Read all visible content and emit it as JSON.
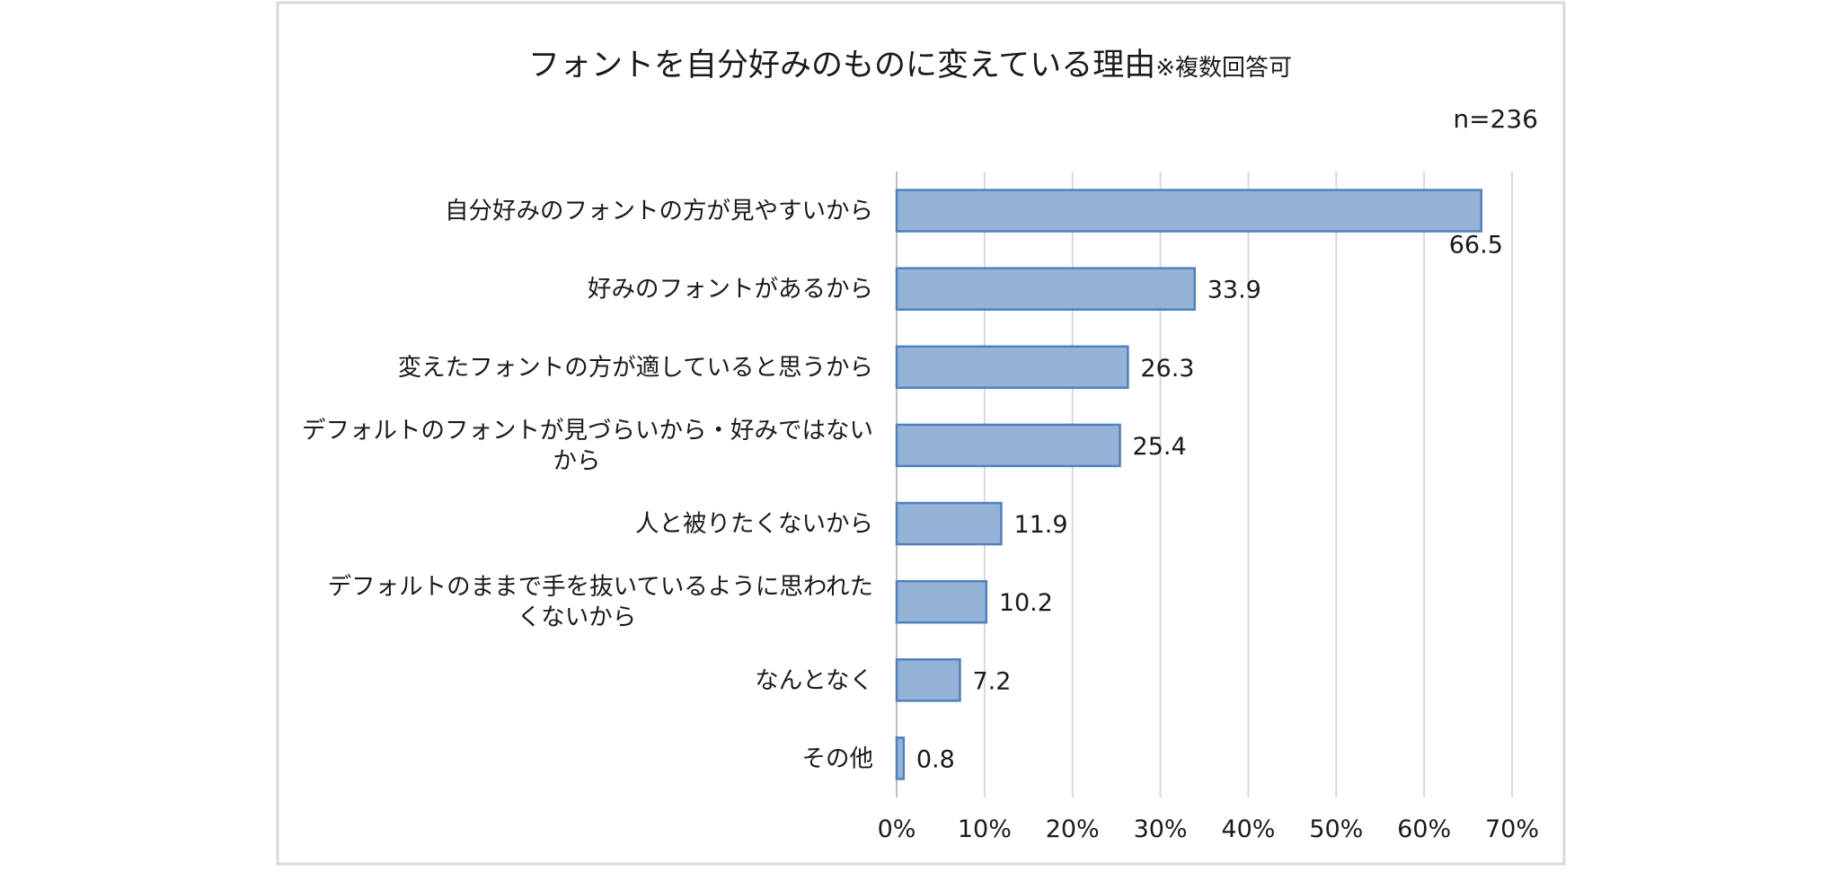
{
  "chart_data": {
    "type": "bar",
    "orientation": "horizontal",
    "title": "フォントを自分好みのものに変えている理由",
    "title_note": "※複数回答可",
    "sample_size": "n=236",
    "categories": [
      "自分好みのフォントの方が見やすいから",
      "好みのフォントがあるから",
      "変えたフォントの方が適していると思うから",
      [
        "デフォルトのフォントが見づらいから・好みではない",
        "から"
      ],
      "人と被りたくないから",
      [
        "デフォルトのままで手を抜いているように思われた",
        "くないから"
      ],
      "なんとなく",
      "その他"
    ],
    "values": [
      66.5,
      33.9,
      26.3,
      25.4,
      11.9,
      10.2,
      7.2,
      0.8
    ],
    "value_labels": [
      "66.5",
      "33.9",
      "26.3",
      "25.4",
      "11.9",
      "10.2",
      "7.2",
      "0.8"
    ],
    "xlim": [
      0,
      70
    ],
    "x_ticks": [
      "0%",
      "10%",
      "20%",
      "30%",
      "40%",
      "50%",
      "60%",
      "70%"
    ],
    "xlabel": "",
    "ylabel": "",
    "grid": "vertical",
    "legend": "none",
    "colors": {
      "bar_fill": "#95b3d7",
      "bar_border": "#4f81bd",
      "grid": "#d9d9d9",
      "frame": "#d9d9d9"
    }
  }
}
